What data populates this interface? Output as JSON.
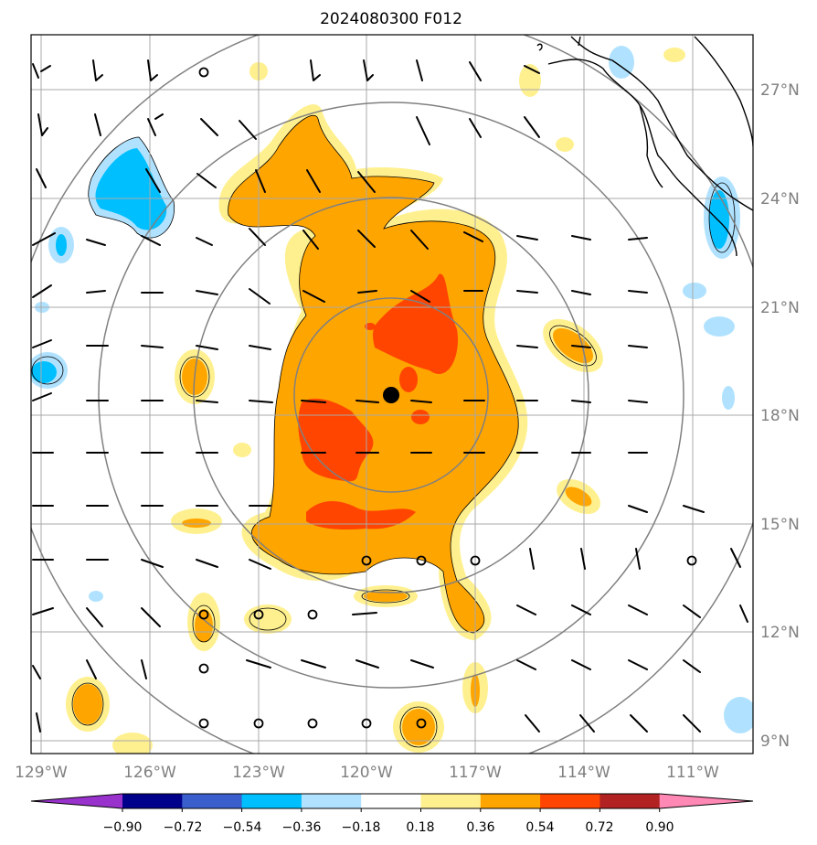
{
  "title": "2024080300 F012",
  "latitude_labels": [
    "27°N",
    "24°N",
    "21°N",
    "18°N",
    "15°N",
    "12°N",
    "9°N"
  ],
  "longitude_labels": [
    "129°W",
    "126°W",
    "123°W",
    "120°W",
    "117°W",
    "114°W",
    "111°W"
  ],
  "colorbar": {
    "tick_labels": [
      "−0.90",
      "−0.72",
      "−0.54",
      "−0.36",
      "−0.18",
      "0.18",
      "0.36",
      "0.54",
      "0.72",
      "0.90"
    ],
    "colors": [
      "#9932cc",
      "#00008b",
      "#3a5fcd",
      "#00bfff",
      "#b0e2ff",
      "#ffffff",
      "#fff08f",
      "#ffa500",
      "#ff4500",
      "#b22222",
      "#ff88b5"
    ]
  },
  "map": {
    "center_marker": "storm-center-dot",
    "range_rings": 4,
    "land_outline": "Baja California coastline",
    "field_colors": {
      "light_yellow": "#fff08f",
      "orange": "#ffa500",
      "red_orange": "#ff4500",
      "light_blue": "#b0e2ff",
      "blue": "#00bfff"
    }
  }
}
